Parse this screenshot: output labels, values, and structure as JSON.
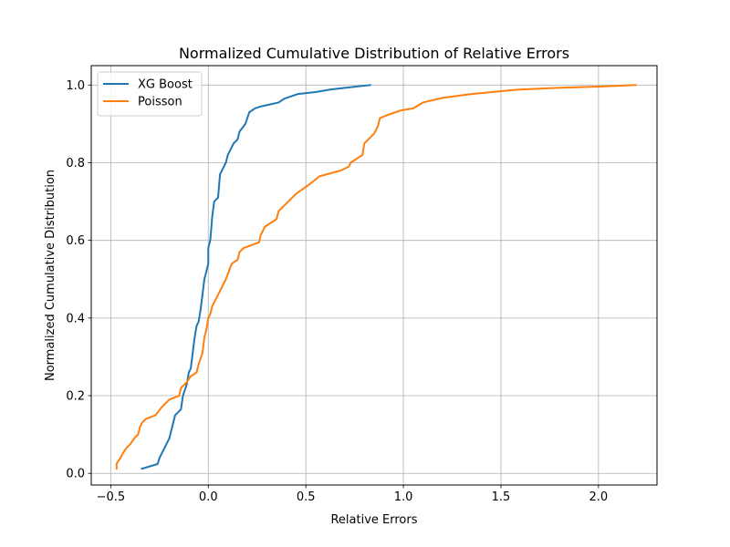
{
  "chart_data": {
    "type": "line",
    "title": "Normalized Cumulative Distribution of Relative Errors",
    "xlabel": "Relative Errors",
    "ylabel": "Normalized Cumulative Distribution",
    "xlim": [
      -0.6,
      2.3
    ],
    "ylim": [
      -0.03,
      1.05
    ],
    "xticks": [
      -0.5,
      0.0,
      0.5,
      1.0,
      1.5,
      2.0
    ],
    "xtick_labels": [
      "−0.5",
      "0.0",
      "0.5",
      "1.0",
      "1.5",
      "2.0"
    ],
    "yticks": [
      0.0,
      0.2,
      0.4,
      0.6,
      0.8,
      1.0
    ],
    "ytick_labels": [
      "0.0",
      "0.2",
      "0.4",
      "0.6",
      "0.8",
      "1.0"
    ],
    "grid": true,
    "legend_position": "top-left",
    "series": [
      {
        "name": "XG Boost",
        "color": "#1f77b4",
        "points": [
          [
            -0.34,
            0.012
          ],
          [
            -0.26,
            0.024
          ],
          [
            -0.25,
            0.04
          ],
          [
            -0.22,
            0.07
          ],
          [
            -0.2,
            0.09
          ],
          [
            -0.19,
            0.11
          ],
          [
            -0.18,
            0.13
          ],
          [
            -0.17,
            0.15
          ],
          [
            -0.14,
            0.165
          ],
          [
            -0.13,
            0.2
          ],
          [
            -0.11,
            0.23
          ],
          [
            -0.1,
            0.26
          ],
          [
            -0.09,
            0.27
          ],
          [
            -0.08,
            0.31
          ],
          [
            -0.07,
            0.35
          ],
          [
            -0.06,
            0.38
          ],
          [
            -0.05,
            0.39
          ],
          [
            -0.04,
            0.42
          ],
          [
            -0.03,
            0.46
          ],
          [
            -0.02,
            0.5
          ],
          [
            -0.01,
            0.52
          ],
          [
            0.0,
            0.54
          ],
          [
            0.0,
            0.58
          ],
          [
            0.01,
            0.6
          ],
          [
            0.02,
            0.66
          ],
          [
            0.03,
            0.7
          ],
          [
            0.05,
            0.71
          ],
          [
            0.06,
            0.77
          ],
          [
            0.08,
            0.79
          ],
          [
            0.09,
            0.8
          ],
          [
            0.1,
            0.82
          ],
          [
            0.12,
            0.84
          ],
          [
            0.13,
            0.85
          ],
          [
            0.15,
            0.86
          ],
          [
            0.16,
            0.88
          ],
          [
            0.19,
            0.9
          ],
          [
            0.21,
            0.93
          ],
          [
            0.24,
            0.94
          ],
          [
            0.27,
            0.945
          ],
          [
            0.36,
            0.955
          ],
          [
            0.39,
            0.965
          ],
          [
            0.46,
            0.977
          ],
          [
            0.55,
            0.982
          ],
          [
            0.62,
            0.988
          ],
          [
            0.72,
            0.994
          ],
          [
            0.83,
            1.0
          ]
        ]
      },
      {
        "name": "Poisson",
        "color": "#ff7f0e",
        "points": [
          [
            -0.47,
            0.012
          ],
          [
            -0.47,
            0.025
          ],
          [
            -0.45,
            0.04
          ],
          [
            -0.44,
            0.05
          ],
          [
            -0.42,
            0.065
          ],
          [
            -0.4,
            0.075
          ],
          [
            -0.38,
            0.09
          ],
          [
            -0.36,
            0.1
          ],
          [
            -0.35,
            0.12
          ],
          [
            -0.34,
            0.13
          ],
          [
            -0.32,
            0.14
          ],
          [
            -0.27,
            0.15
          ],
          [
            -0.24,
            0.17
          ],
          [
            -0.2,
            0.19
          ],
          [
            -0.15,
            0.2
          ],
          [
            -0.14,
            0.22
          ],
          [
            -0.11,
            0.235
          ],
          [
            -0.09,
            0.25
          ],
          [
            -0.06,
            0.26
          ],
          [
            -0.05,
            0.28
          ],
          [
            -0.03,
            0.31
          ],
          [
            -0.02,
            0.35
          ],
          [
            -0.01,
            0.37
          ],
          [
            0.0,
            0.4
          ],
          [
            0.01,
            0.41
          ],
          [
            0.02,
            0.43
          ],
          [
            0.04,
            0.45
          ],
          [
            0.06,
            0.47
          ],
          [
            0.09,
            0.5
          ],
          [
            0.12,
            0.54
          ],
          [
            0.15,
            0.55
          ],
          [
            0.16,
            0.57
          ],
          [
            0.18,
            0.58
          ],
          [
            0.26,
            0.595
          ],
          [
            0.27,
            0.615
          ],
          [
            0.29,
            0.635
          ],
          [
            0.32,
            0.645
          ],
          [
            0.35,
            0.655
          ],
          [
            0.36,
            0.675
          ],
          [
            0.41,
            0.7
          ],
          [
            0.45,
            0.72
          ],
          [
            0.52,
            0.745
          ],
          [
            0.57,
            0.765
          ],
          [
            0.68,
            0.78
          ],
          [
            0.72,
            0.79
          ],
          [
            0.73,
            0.8
          ],
          [
            0.79,
            0.82
          ],
          [
            0.8,
            0.85
          ],
          [
            0.85,
            0.875
          ],
          [
            0.87,
            0.895
          ],
          [
            0.88,
            0.915
          ],
          [
            0.93,
            0.925
          ],
          [
            0.99,
            0.935
          ],
          [
            1.05,
            0.94
          ],
          [
            1.1,
            0.955
          ],
          [
            1.2,
            0.967
          ],
          [
            1.35,
            0.977
          ],
          [
            1.58,
            0.988
          ],
          [
            1.8,
            0.993
          ],
          [
            2.0,
            0.996
          ],
          [
            2.19,
            1.0
          ]
        ]
      }
    ]
  }
}
